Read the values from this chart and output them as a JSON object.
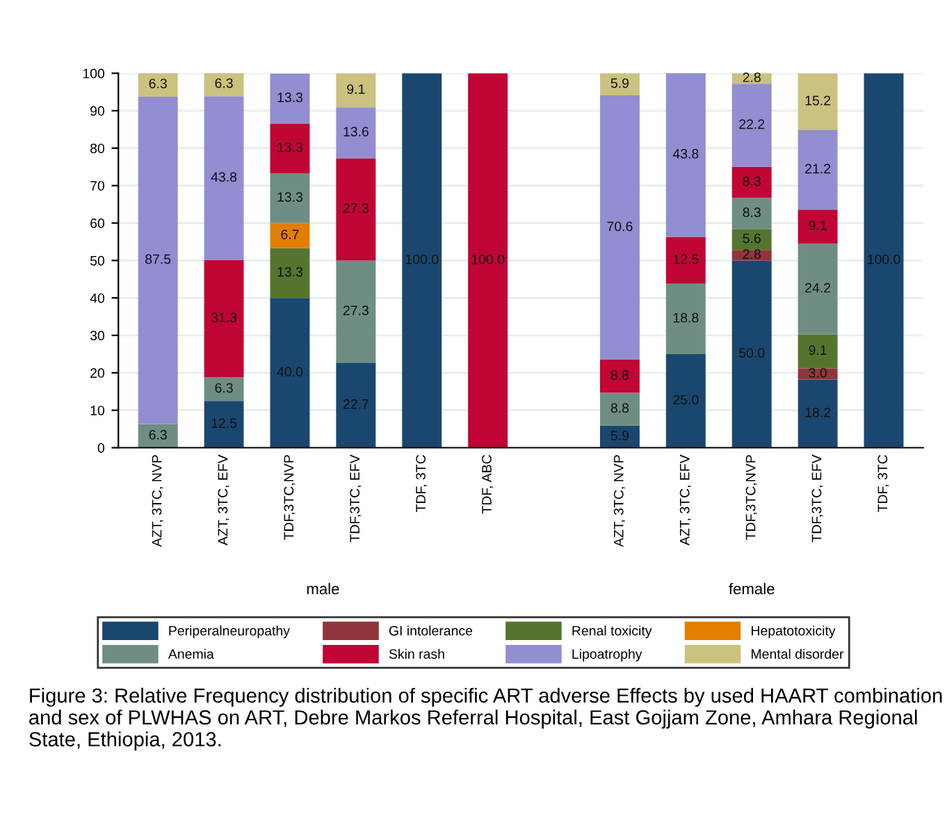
{
  "chart_data": {
    "type": "bar",
    "stacked": true,
    "data_labels": true,
    "grid": "y",
    "legend": "bottom",
    "categories": [
      "AZT, 3TC, NVP",
      "AZT, 3TC, EFV",
      "TDF,3TC,NVP",
      "TDF,3TC, EFV",
      "TDF, 3TC",
      "TDF, ABC",
      null,
      "AZT, 3TC, NVP",
      "AZT, 3TC, EFV",
      "TDF,3TC,NVP",
      "TDF,3TC, EFV",
      "TDF, 3TC"
    ],
    "ylim": [
      0,
      100
    ],
    "yticks": [
      0,
      10,
      20,
      30,
      40,
      50,
      60,
      70,
      80,
      90,
      100
    ],
    "series": [
      {
        "name": "Periperalneuropathy",
        "color": "#1a476f",
        "values": [
          null,
          12.5,
          40.0,
          22.7,
          100.0,
          null,
          null,
          5.9,
          25.0,
          50.0,
          18.2,
          100.0
        ],
        "value_labels": [
          null,
          "12.5",
          "40.0",
          "22.7",
          "100.0",
          null,
          null,
          "5.9",
          "25.0",
          "50.0",
          "18.2",
          "100.0"
        ]
      },
      {
        "name": "GI intolerance",
        "color": "#90353b",
        "values": [
          null,
          null,
          null,
          null,
          null,
          null,
          null,
          null,
          null,
          2.8,
          3.0,
          null
        ],
        "value_labels": [
          null,
          null,
          null,
          null,
          null,
          null,
          null,
          null,
          null,
          "2.8",
          "3.0",
          null
        ]
      },
      {
        "name": "Renal toxicity",
        "color": "#55752f",
        "values": [
          null,
          null,
          13.3,
          null,
          null,
          null,
          null,
          null,
          null,
          5.6,
          9.1,
          null
        ]
      },
      {
        "name": "Hepatotoxicity",
        "color": "#e37e00",
        "values": [
          null,
          null,
          6.7,
          null,
          null,
          null,
          null,
          null,
          null,
          null,
          null,
          null
        ]
      },
      {
        "name": "Anemia",
        "color": "#6e8e84",
        "values": [
          6.3,
          6.3,
          13.3,
          27.3,
          null,
          null,
          null,
          8.8,
          18.8,
          8.3,
          24.2,
          null
        ]
      },
      {
        "name": "Skin rash",
        "color": "#c10534",
        "values": [
          null,
          31.3,
          13.3,
          27.3,
          null,
          100.0,
          null,
          8.8,
          12.5,
          8.3,
          9.1,
          null
        ],
        "value_labels": [
          null,
          "31.3",
          "13.3",
          "27.3",
          null,
          "100.0",
          null,
          "8.8",
          "12.5",
          "8.3",
          "9.1",
          null
        ]
      },
      {
        "name": "Lipoatrophy",
        "color": "#938dd2",
        "values": [
          87.5,
          43.8,
          13.3,
          13.6,
          null,
          null,
          null,
          70.6,
          43.8,
          22.2,
          21.2,
          null
        ]
      },
      {
        "name": "Mental disorder",
        "color": "#cac27e",
        "values": [
          6.3,
          6.3,
          null,
          9.1,
          null,
          null,
          null,
          5.9,
          null,
          2.8,
          15.2,
          null
        ]
      }
    ],
    "annotations": [
      "male",
      "female",
      "Figure 3: Relative Frequency distribution of specific ART adverse Effects by used HAART combination and sex of PLWHAS on ART, Debre Markos Referral Hospital, East Gojjam Zone, Amhara Regional State, Ethiopia, 2013."
    ]
  }
}
